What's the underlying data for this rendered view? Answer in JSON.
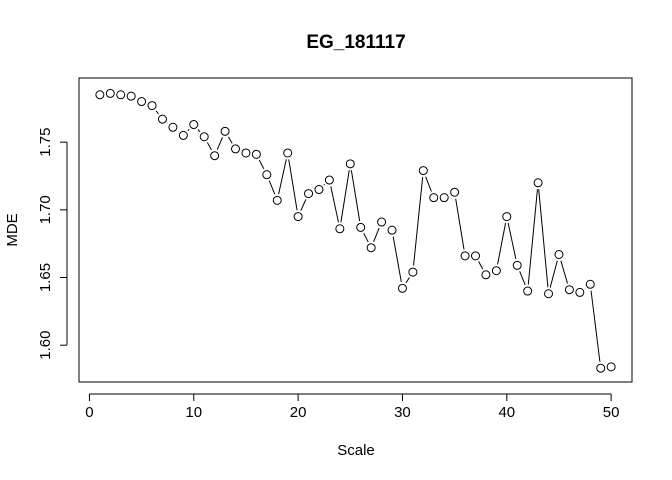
{
  "chart_data": {
    "type": "line",
    "title": "EG_181117",
    "xlabel": "Scale",
    "ylabel": "MDE",
    "xlim": [
      -1,
      52
    ],
    "ylim": [
      1.5728,
      1.7974
    ],
    "xticks": [
      0,
      10,
      20,
      30,
      40,
      50
    ],
    "xtick_labels": [
      "0",
      "10",
      "20",
      "30",
      "40",
      "50"
    ],
    "yticks": [
      1.6,
      1.65,
      1.7,
      1.75
    ],
    "ytick_labels": [
      "1.60",
      "1.65",
      "1.70",
      "1.75"
    ],
    "grid": false,
    "legend": "none",
    "marker": "open-circle",
    "colors": {
      "line": "#000000",
      "marker_fill": "#ffffff",
      "axes": "#000000",
      "background": "#ffffff"
    },
    "series": [
      {
        "x": [
          1,
          2,
          3,
          4,
          5,
          6,
          7,
          8,
          9,
          10,
          11,
          12,
          13,
          14,
          15,
          16,
          17,
          18,
          19,
          20,
          21,
          22,
          23,
          24,
          25,
          26,
          27,
          28,
          29,
          30,
          31,
          32,
          33,
          34,
          35,
          36,
          37,
          38,
          39,
          40,
          41,
          42,
          43,
          44,
          45,
          46,
          47,
          48,
          49,
          50
        ],
        "values": [
          1.785,
          1.786,
          1.785,
          1.784,
          1.78,
          1.777,
          1.767,
          1.761,
          1.755,
          1.763,
          1.754,
          1.74,
          1.758,
          1.745,
          1.742,
          1.741,
          1.726,
          1.707,
          1.742,
          1.695,
          1.712,
          1.715,
          1.722,
          1.686,
          1.734,
          1.687,
          1.672,
          1.691,
          1.685,
          1.642,
          1.654,
          1.729,
          1.709,
          1.709,
          1.713,
          1.666,
          1.666,
          1.652,
          1.655,
          1.695,
          1.659,
          1.64,
          1.72,
          1.638,
          1.667,
          1.641,
          1.639,
          1.645,
          1.583,
          1.584
        ]
      }
    ]
  }
}
